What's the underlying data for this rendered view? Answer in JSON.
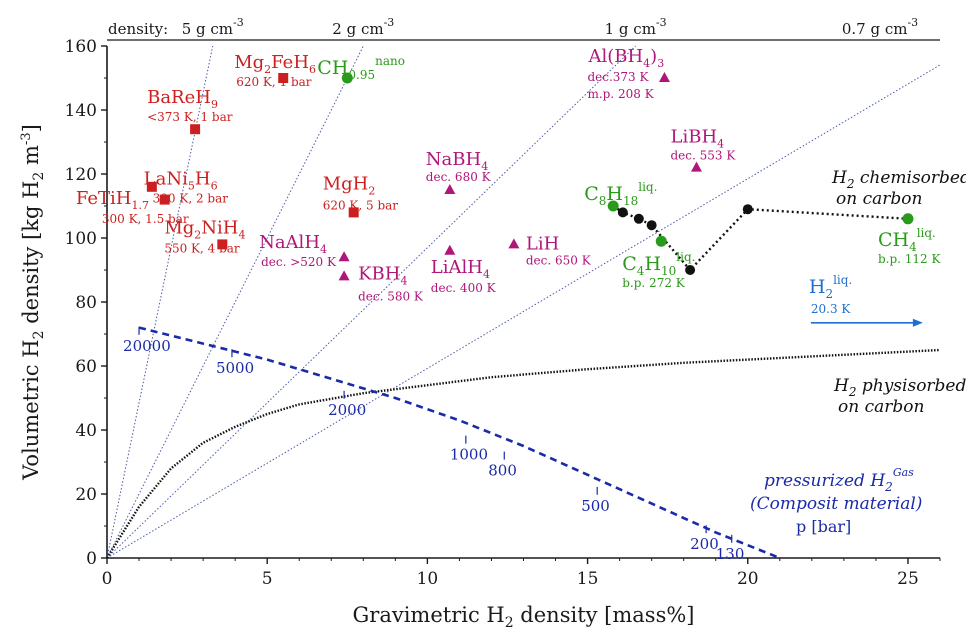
{
  "chart_data": {
    "type": "scatter",
    "xlabel": {
      "pre": "Gravimetric H",
      "sub": "2",
      "post": " density [mass%]"
    },
    "ylabel": {
      "pre": "Volumetric H",
      "sub": "2",
      "post": " density [kg H",
      "sub2": "2",
      "post2": " m",
      "sup": "-3",
      "post3": "]"
    },
    "xlim": [
      0,
      26
    ],
    "ylim": [
      0,
      160
    ],
    "xticks": [
      0,
      5,
      10,
      15,
      20,
      25
    ],
    "yticks": [
      0,
      20,
      40,
      60,
      80,
      100,
      120,
      140,
      160
    ],
    "grid": false,
    "density_axis": {
      "prefix": "density:",
      "unit": "g cm",
      "unit_sup": "-3",
      "lines": [
        {
          "label": "5",
          "x_at_top": 3.3
        },
        {
          "label": "2",
          "x_at_top": 8.0
        },
        {
          "label": "1",
          "x_at_top": 16.5
        },
        {
          "label": "0.7",
          "x_at_top": 27.0
        }
      ]
    },
    "colors": {
      "axis": "#1a1a1a",
      "metal_hydride": "#cc2020",
      "complex_hydride": "#b0157a",
      "hydrocarbon": "#2a9a1a",
      "liquid_h2": "#1e6fd0",
      "pressure": "#1a2aa8",
      "density_line": "#4a5aa8"
    },
    "series": [
      {
        "name": "metal hydrides",
        "marker": "square",
        "color": "#cc2020",
        "points": [
          {
            "x": 2.75,
            "y": 134,
            "label": "BaReH",
            "sub": "9",
            "note": "<373 K, 1 bar"
          },
          {
            "x": 5.5,
            "y": 150,
            "label": "Mg",
            "sub": "2",
            "label2": "FeH",
            "sub2": "6",
            "note": "620 K, 1 bar"
          },
          {
            "x": 1.8,
            "y": 112,
            "label": "LaNi",
            "sub": "5",
            "label2": "H",
            "sub2": "6",
            "note": "300 K, 2 bar"
          },
          {
            "x": 1.4,
            "y": 116,
            "label": "FeTiH",
            "sub": "1.7",
            "note": "300 K, 1.5 bar"
          },
          {
            "x": 3.6,
            "y": 98,
            "label": "Mg",
            "sub": "2",
            "label2": "NiH",
            "sub2": "4",
            "note": "550 K, 4 bar"
          },
          {
            "x": 7.7,
            "y": 108,
            "label": "MgH",
            "sub": "2",
            "note": "620 K, 5 bar"
          }
        ]
      },
      {
        "name": "complex hydrides",
        "marker": "triangle",
        "color": "#b0157a",
        "points": [
          {
            "x": 17.4,
            "y": 150,
            "label": "Al(BH",
            "sub": "4",
            "label2": ")",
            "sub2": "3",
            "note": "dec.373 K",
            "note2": "m.p. 208 K"
          },
          {
            "x": 18.4,
            "y": 122,
            "label": "LiBH",
            "sub": "4",
            "note": "dec. 553 K"
          },
          {
            "x": 10.7,
            "y": 115,
            "label": "NaBH",
            "sub": "4",
            "note": "dec. 680 K"
          },
          {
            "x": 7.4,
            "y": 94,
            "label": "NaAlH",
            "sub": "4",
            "note": "dec. >520 K"
          },
          {
            "x": 7.4,
            "y": 88,
            "label": "KBH",
            "sub": "4",
            "note": "dec. 580 K"
          },
          {
            "x": 10.7,
            "y": 96,
            "label": "LiAlH",
            "sub": "4",
            "note": "dec. 400 K"
          },
          {
            "x": 12.7,
            "y": 98,
            "label": "LiH",
            "note": "dec. 650 K"
          }
        ]
      },
      {
        "name": "hydrocarbons",
        "marker": "circle",
        "color": "#2a9a1a",
        "points": [
          {
            "x": 7.5,
            "y": 150,
            "label": "C",
            "sup": "nano",
            "label2": "H",
            "sub2": "0.95"
          },
          {
            "x": 15.8,
            "y": 110,
            "label": "C",
            "sub": "8",
            "label2": "H",
            "sub2": "18",
            "sup": "liq."
          },
          {
            "x": 17.3,
            "y": 99,
            "label": "C",
            "sub": "4",
            "label2": "H",
            "sub2": "10",
            "sup": "liq.",
            "note": "b.p. 272 K"
          },
          {
            "x": 25.0,
            "y": 106,
            "label": "CH",
            "sub": "4",
            "sup": "liq.",
            "note": "b.p. 112 K"
          }
        ]
      },
      {
        "name": "H2 chemisorbed on carbon",
        "marker": "circle",
        "color": "#111111",
        "line": "dotted",
        "label_parts": [
          "H",
          "2",
          " chemisorbed",
          "on carbon"
        ],
        "points": [
          [
            15.8,
            110
          ],
          [
            16.1,
            108
          ],
          [
            16.6,
            106
          ],
          [
            17.0,
            104
          ],
          [
            18.2,
            90
          ],
          [
            20.0,
            109
          ],
          [
            25.0,
            106
          ]
        ]
      },
      {
        "name": "H2 physisorbed on carbon",
        "line": "dotted",
        "color": "#111111",
        "label_parts": [
          "H",
          "2",
          " physisorbed",
          "on carbon"
        ],
        "points": [
          [
            0,
            0
          ],
          [
            1,
            16
          ],
          [
            2,
            28
          ],
          [
            3,
            36
          ],
          [
            4,
            41
          ],
          [
            5,
            45
          ],
          [
            6,
            48
          ],
          [
            8,
            51.5
          ],
          [
            10,
            54
          ],
          [
            12,
            56.5
          ],
          [
            15,
            59
          ],
          [
            18,
            61
          ],
          [
            22,
            63
          ],
          [
            25,
            64.5
          ],
          [
            26,
            65
          ]
        ]
      },
      {
        "name": "liquid hydrogen",
        "color": "#1e6fd0",
        "label": "H",
        "sub": "2",
        "sup": "liq.",
        "note": "20.3 K",
        "x": 23,
        "y": 71
      },
      {
        "name": "pressurized H2",
        "line": "dashed",
        "color": "#1a2aa8",
        "label_parts": [
          "pressurized H",
          "2",
          "Gas",
          "(Composit material)",
          "p [bar]"
        ],
        "points": [
          [
            1.0,
            72
          ],
          [
            3.0,
            67
          ],
          [
            5.0,
            62
          ],
          [
            7.0,
            56
          ],
          [
            9.0,
            50
          ],
          [
            11.0,
            43
          ],
          [
            13.0,
            35
          ],
          [
            15.0,
            26
          ],
          [
            17.0,
            17
          ],
          [
            19.0,
            8
          ],
          [
            21.0,
            0
          ]
        ],
        "pressure_labels": [
          {
            "text": "20000",
            "x": 1.0,
            "y": 71
          },
          {
            "text": "5000",
            "x": 3.9,
            "y": 64
          },
          {
            "text": "2000",
            "x": 7.4,
            "y": 51
          },
          {
            "text": "1000",
            "x": 11.2,
            "y": 37
          },
          {
            "text": "800",
            "x": 12.4,
            "y": 32
          },
          {
            "text": "500",
            "x": 15.3,
            "y": 21
          },
          {
            "text": "200",
            "x": 18.7,
            "y": 9
          },
          {
            "text": "130",
            "x": 19.5,
            "y": 6
          }
        ]
      }
    ]
  }
}
